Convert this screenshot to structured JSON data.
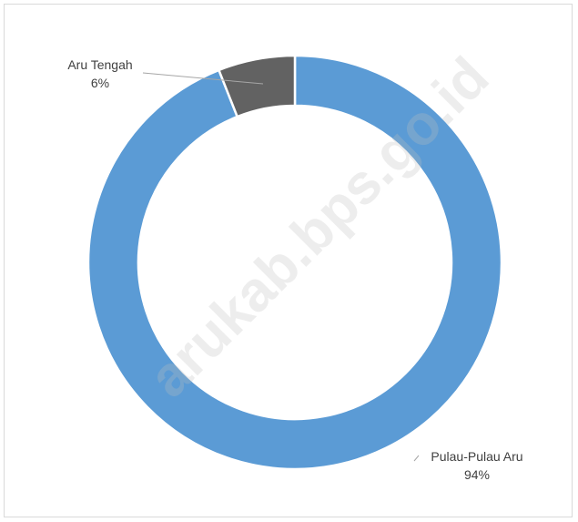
{
  "chart_data": {
    "type": "pie",
    "subtype": "doughnut",
    "slices": [
      {
        "label": "Pulau-Pulau Aru",
        "value": 94,
        "display": "94%",
        "color": "#5b9bd5"
      },
      {
        "label": "Aru Tengah",
        "value": 6,
        "display": "6%",
        "color": "#626262"
      }
    ],
    "legend": "none",
    "data_labels": "outside-with-leader-lines"
  },
  "watermark": {
    "text": "arukab.bps.go.id"
  }
}
